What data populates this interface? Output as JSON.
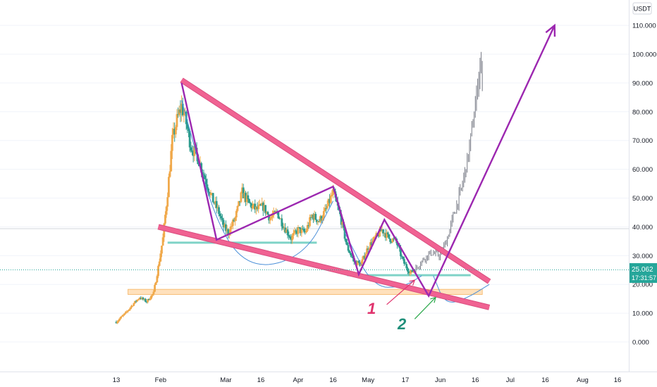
{
  "currency": "USDT",
  "current_price": {
    "price": "25.062",
    "countdown": "17:31:57"
  },
  "annotations": [
    {
      "text": "1",
      "color": "#e0336d"
    },
    {
      "text": "2",
      "color": "#1f8f7a"
    }
  ],
  "colors": {
    "up": "#f0a94b",
    "down": "#2e9c8e",
    "projection": "#787b86",
    "wedge": "#f06292",
    "pattern": "#9c27b0",
    "support": "#7fd3c7",
    "demand_zone": "#ffd7a6",
    "curve": "#4a8fd8",
    "price_badge": "#26a69a"
  },
  "chart_data": {
    "type": "candlestick",
    "title": "",
    "xlabel": "",
    "ylabel": "",
    "ylim": [
      -10,
      118
    ],
    "xlim": [
      "2025-01-04",
      "2025-08-22"
    ],
    "y_ticks": [
      "0.000",
      "10.000",
      "20.000",
      "30.000",
      "40.000",
      "50.000",
      "60.000",
      "70.000",
      "80.000",
      "90.000",
      "100.000",
      "110.000"
    ],
    "x_ticks": [
      {
        "date": "2025-01-13",
        "label": "13"
      },
      {
        "date": "2025-02-01",
        "label": "Feb"
      },
      {
        "date": "2025-03-01",
        "label": "Mar"
      },
      {
        "date": "2025-03-16",
        "label": "16"
      },
      {
        "date": "2025-04-01",
        "label": "Apr"
      },
      {
        "date": "2025-04-16",
        "label": "16"
      },
      {
        "date": "2025-05-01",
        "label": "May"
      },
      {
        "date": "2025-05-17",
        "label": "17"
      },
      {
        "date": "2025-06-01",
        "label": "Jun"
      },
      {
        "date": "2025-06-16",
        "label": "16"
      },
      {
        "date": "2025-07-01",
        "label": "Jul"
      },
      {
        "date": "2025-07-16",
        "label": "16"
      },
      {
        "date": "2025-08-01",
        "label": "Aug"
      },
      {
        "date": "2025-08-16",
        "label": "16"
      }
    ],
    "grid": true,
    "legend": "none",
    "anchors": [
      [
        "2025-01-13",
        7
      ],
      [
        "2025-01-17",
        10
      ],
      [
        "2025-01-20",
        13
      ],
      [
        "2025-01-23",
        15.5
      ],
      [
        "2025-01-26",
        14
      ],
      [
        "2025-01-29",
        17
      ],
      [
        "2025-01-31",
        26
      ],
      [
        "2025-02-02",
        36
      ],
      [
        "2025-02-04",
        52
      ],
      [
        "2025-02-06",
        70
      ],
      [
        "2025-02-08",
        77
      ],
      [
        "2025-02-10",
        82
      ],
      [
        "2025-02-12",
        76
      ],
      [
        "2025-02-14",
        68
      ],
      [
        "2025-02-17",
        64
      ],
      [
        "2025-02-20",
        57
      ],
      [
        "2025-02-23",
        50
      ],
      [
        "2025-02-26",
        45
      ],
      [
        "2025-02-28",
        40
      ],
      [
        "2025-03-02",
        38
      ],
      [
        "2025-03-05",
        43
      ],
      [
        "2025-03-08",
        52
      ],
      [
        "2025-03-11",
        48
      ],
      [
        "2025-03-14",
        46
      ],
      [
        "2025-03-17",
        47
      ],
      [
        "2025-03-20",
        43
      ],
      [
        "2025-03-23",
        45
      ],
      [
        "2025-03-26",
        40
      ],
      [
        "2025-03-29",
        36
      ],
      [
        "2025-04-01",
        39
      ],
      [
        "2025-04-04",
        38
      ],
      [
        "2025-04-07",
        44
      ],
      [
        "2025-04-10",
        42
      ],
      [
        "2025-04-13",
        46
      ],
      [
        "2025-04-16",
        52
      ],
      [
        "2025-04-19",
        44
      ],
      [
        "2025-04-22",
        33
      ],
      [
        "2025-04-25",
        28
      ],
      [
        "2025-04-28",
        27
      ],
      [
        "2025-05-01",
        33
      ],
      [
        "2025-05-04",
        36
      ],
      [
        "2025-05-07",
        39
      ],
      [
        "2025-05-10",
        36
      ],
      [
        "2025-05-13",
        35
      ],
      [
        "2025-05-16",
        28
      ],
      [
        "2025-05-19",
        24
      ],
      [
        "2025-05-21",
        25
      ]
    ],
    "projection_anchors": [
      [
        "2025-05-21",
        25
      ],
      [
        "2025-05-25",
        29
      ],
      [
        "2025-05-28",
        31
      ],
      [
        "2025-06-01",
        30
      ],
      [
        "2025-06-04",
        36
      ],
      [
        "2025-06-07",
        45
      ],
      [
        "2025-06-10",
        53
      ],
      [
        "2025-06-13",
        65
      ],
      [
        "2025-06-16",
        82
      ],
      [
        "2025-06-18",
        97
      ],
      [
        "2025-06-19",
        92
      ]
    ],
    "drawings": {
      "wedge_upper": [
        [
          "2025-02-10",
          91
        ],
        [
          "2025-06-22",
          21
        ]
      ],
      "wedge_lower": [
        [
          "2025-01-31",
          40
        ],
        [
          "2025-06-22",
          12
        ]
      ],
      "support_lines": [
        {
          "y": 34.5,
          "from": "2025-02-04",
          "to": "2025-04-09"
        },
        {
          "y": 23.2,
          "from": "2025-04-22",
          "to": "2025-06-14"
        }
      ],
      "demand_zone": {
        "from": "2025-01-18",
        "to": "2025-06-19",
        "y_low": 16.5,
        "y_high": 18.3
      },
      "pattern_path": [
        [
          "2025-02-10",
          90
        ],
        [
          "2025-02-25",
          35.5
        ],
        [
          "2025-04-16",
          54
        ],
        [
          "2025-04-27",
          23.5
        ],
        [
          "2025-05-08",
          42.5
        ],
        [
          "2025-05-27",
          16
        ],
        [
          "2025-07-20",
          110
        ]
      ],
      "arrows": [
        {
          "from": [
            "2025-05-09",
            13
          ],
          "to": [
            "2025-05-21",
            21.5
          ],
          "color": "#e0336d"
        },
        {
          "from": [
            "2025-05-21",
            8
          ],
          "to": [
            "2025-05-30",
            15.5
          ],
          "color": "#2aa84a"
        }
      ],
      "curves": [
        [
          [
            "2025-02-10",
            84
          ],
          [
            "2025-02-25",
            40
          ],
          [
            "2025-03-12",
            25
          ],
          [
            "2025-04-04",
            30
          ],
          [
            "2025-04-16",
            49
          ]
        ],
        [
          [
            "2025-04-21",
            38
          ],
          [
            "2025-05-03",
            19
          ],
          [
            "2025-05-16",
            19
          ],
          [
            "2025-05-24",
            23
          ]
        ],
        [
          [
            "2025-05-29",
            23
          ],
          [
            "2025-06-03",
            13
          ],
          [
            "2025-06-12",
            15
          ],
          [
            "2025-06-22",
            20
          ]
        ]
      ]
    }
  }
}
